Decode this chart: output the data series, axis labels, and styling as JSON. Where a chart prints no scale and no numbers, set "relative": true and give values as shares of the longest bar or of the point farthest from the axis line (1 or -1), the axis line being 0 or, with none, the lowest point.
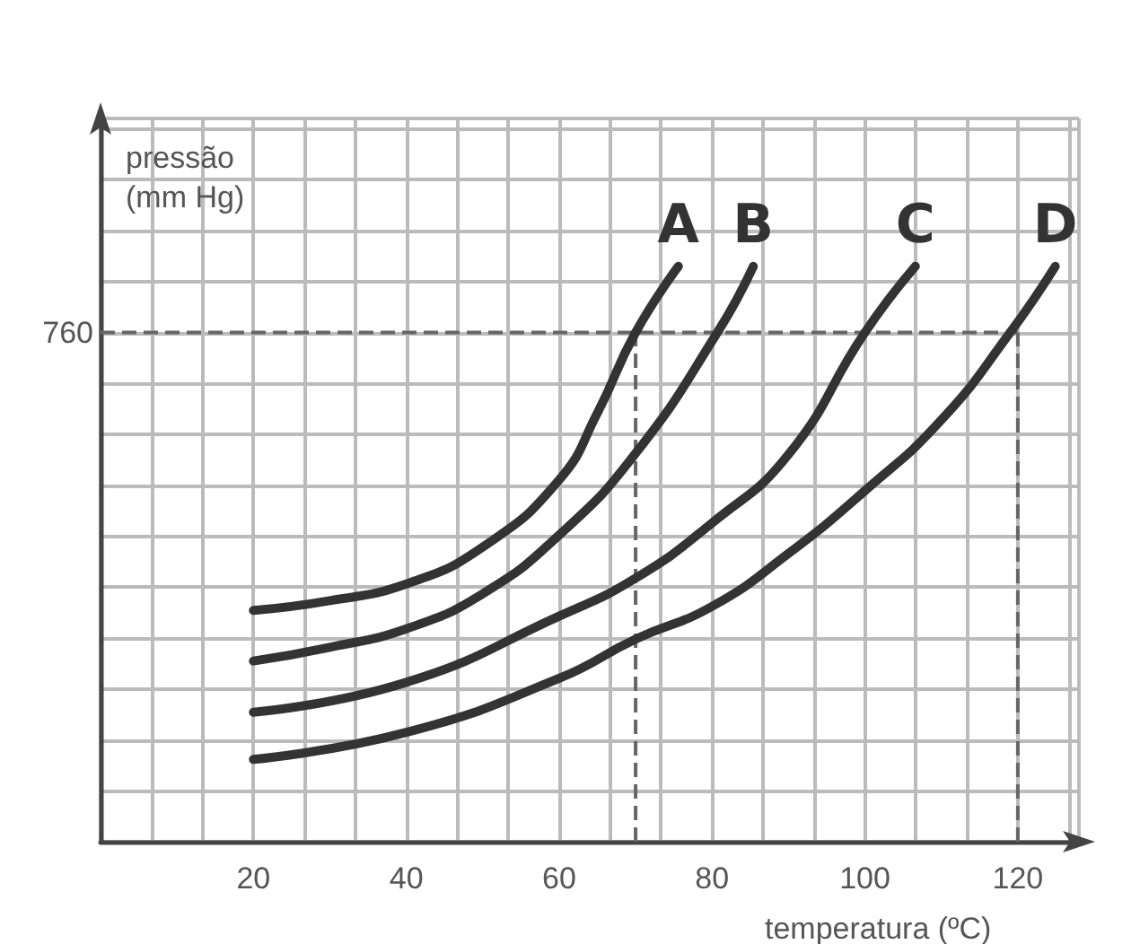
{
  "chart_data": {
    "type": "line",
    "xlabel": "temperatura (ºC)",
    "ylabel": "pressão\n(mm Hg)",
    "relative": true,
    "xlim": [
      0,
      128
    ],
    "xticks": [
      {
        "value": 0,
        "label": null
      },
      20,
      40,
      60,
      80,
      100,
      120
    ],
    "annotations": [
      {
        "text": "760",
        "x": 0,
        "y": 0.885
      }
    ],
    "grid": true,
    "legend": false,
    "marker": "none",
    "line_style": "solid",
    "series": [
      {
        "name": "A",
        "color": "#333333",
        "x": [
          20,
          30,
          40,
          50,
          60,
          65,
          70,
          75.6
        ],
        "values": [
          0.402,
          0.419,
          0.448,
          0.512,
          0.629,
          0.745,
          0.885,
          1
        ]
      },
      {
        "name": "B",
        "color": "#333333",
        "x": [
          20,
          30,
          40,
          50,
          60,
          70,
          80.7,
          85.4
        ],
        "values": [
          0.314,
          0.338,
          0.37,
          0.431,
          0.533,
          0.675,
          0.885,
          1
        ]
      },
      {
        "name": "C",
        "color": "#333333",
        "x": [
          20,
          40,
          60,
          70,
          80,
          90,
          100,
          106.6
        ],
        "values": [
          0.225,
          0.277,
          0.392,
          0.458,
          0.554,
          0.673,
          0.885,
          1
        ]
      },
      {
        "name": "D",
        "color": "#333333",
        "x": [
          20,
          40,
          60,
          70,
          80,
          90,
          100,
          110,
          119,
          124.9
        ],
        "values": [
          0.143,
          0.19,
          0.284,
          0.352,
          0.409,
          0.501,
          0.61,
          0.733,
          0.885,
          1
        ]
      }
    ],
    "ref_lines": [
      {
        "axis": "y",
        "value": 0.885,
        "color": "#666666",
        "line_style": "dashed"
      },
      {
        "axis": "x",
        "value": 70,
        "color": "#666666",
        "line_style": "dashed"
      },
      {
        "axis": "x",
        "value": 120,
        "color": "#666666",
        "line_style": "dashed"
      }
    ]
  }
}
